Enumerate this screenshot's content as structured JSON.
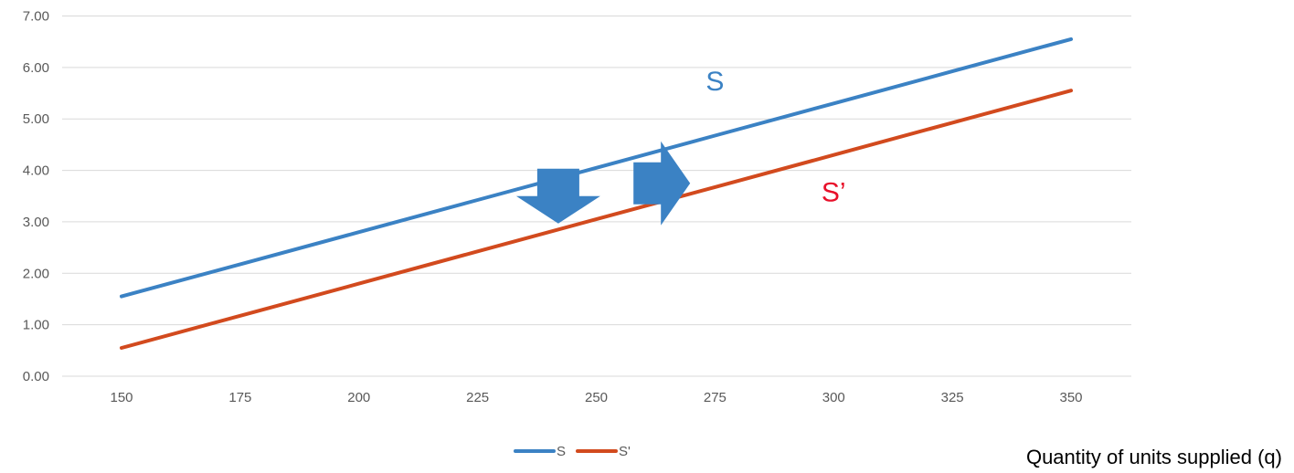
{
  "chart_data": {
    "type": "line",
    "x": [
      150,
      175,
      200,
      225,
      250,
      275,
      300,
      325,
      350
    ],
    "x_tick_labels": [
      "150",
      "175",
      "200",
      "225",
      "250",
      "275",
      "300",
      "325",
      "350"
    ],
    "y_tick_labels": [
      "0.00",
      "1.00",
      "2.00",
      "3.00",
      "4.00",
      "5.00",
      "6.00",
      "7.00"
    ],
    "ylim": [
      0,
      7
    ],
    "xlabel": "Quantity of units supplied (q)",
    "ylabel": "",
    "grid": true,
    "legend_position": "bottom",
    "series": [
      {
        "name": "S",
        "color": "#3b82c4",
        "values": [
          1.55,
          2.175,
          2.8,
          3.425,
          4.05,
          4.675,
          5.3,
          5.925,
          6.55
        ]
      },
      {
        "name": "S'",
        "color": "#d24a1e",
        "values": [
          0.55,
          1.175,
          1.8,
          2.425,
          3.05,
          3.675,
          4.3,
          4.925,
          5.55
        ]
      }
    ],
    "annotations": [
      {
        "text": "S",
        "color": "#3b82c4",
        "x": 275,
        "y": 5.55
      },
      {
        "text": "S’",
        "color": "#e8102a",
        "x": 300,
        "y": 3.4
      }
    ],
    "arrows": [
      {
        "name": "down-arrow",
        "direction": "down",
        "color": "#3b82c4",
        "x": 242,
        "y": 3.5
      },
      {
        "name": "right-arrow",
        "direction": "right",
        "color": "#3b82c4",
        "x": 264,
        "y": 3.75
      }
    ]
  }
}
